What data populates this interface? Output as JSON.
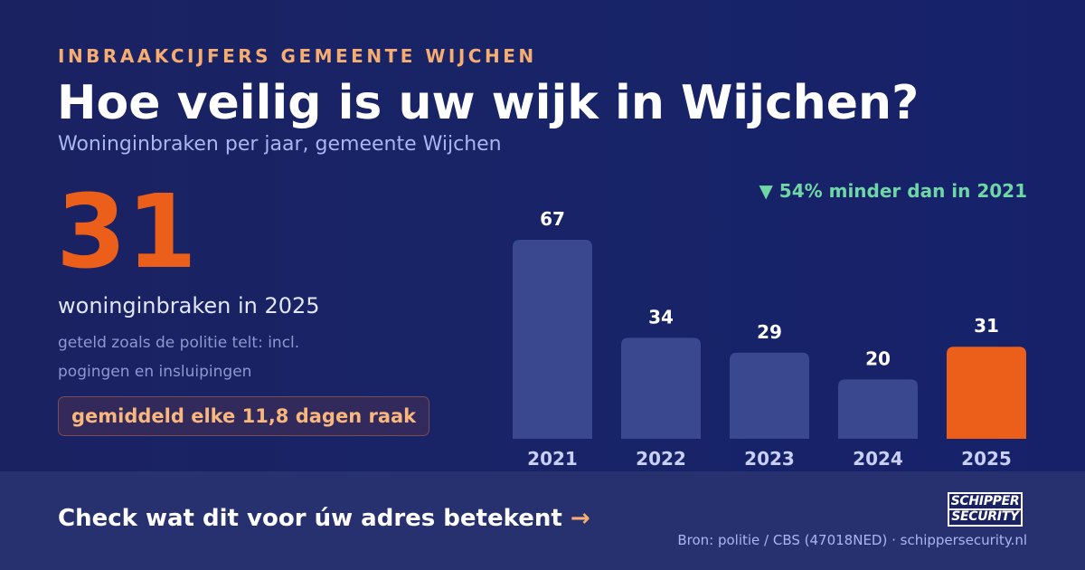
{
  "header": {
    "kicker": "INBRAAKCIJFERS GEMEENTE WIJCHEN",
    "title": "Hoe veilig is uw wijk in Wijchen?",
    "subtitle": "Woninginbraken per jaar, gemeente Wijchen"
  },
  "highlight": {
    "number": "31",
    "caption": "woninginbraken in 2025",
    "note": "geteld zoals de politie telt: incl. pogingen en insluipingen",
    "badge": "gemiddeld elke 11,8 dagen raak"
  },
  "change_label": "▼ 54% minder dan in 2021",
  "chart_data": {
    "type": "bar",
    "title": "",
    "xlabel": "",
    "ylabel": "",
    "categories": [
      "2021",
      "2022",
      "2023",
      "2024",
      "2025"
    ],
    "values": [
      67,
      34,
      29,
      20,
      31
    ],
    "ylim": [
      0,
      67
    ],
    "grid": false,
    "highlight_category": "2025",
    "colors": {
      "default": "#3a498f",
      "highlight": "#ec5f1a"
    }
  },
  "footer": {
    "cta": "Check wat dit voor úw adres betekent",
    "cta_arrow": "→",
    "source": "Bron: politie / CBS (47018NED) · schippersecurity.nl",
    "logo_line1": "SCHIPPER",
    "logo_line2": "SECURITY"
  }
}
